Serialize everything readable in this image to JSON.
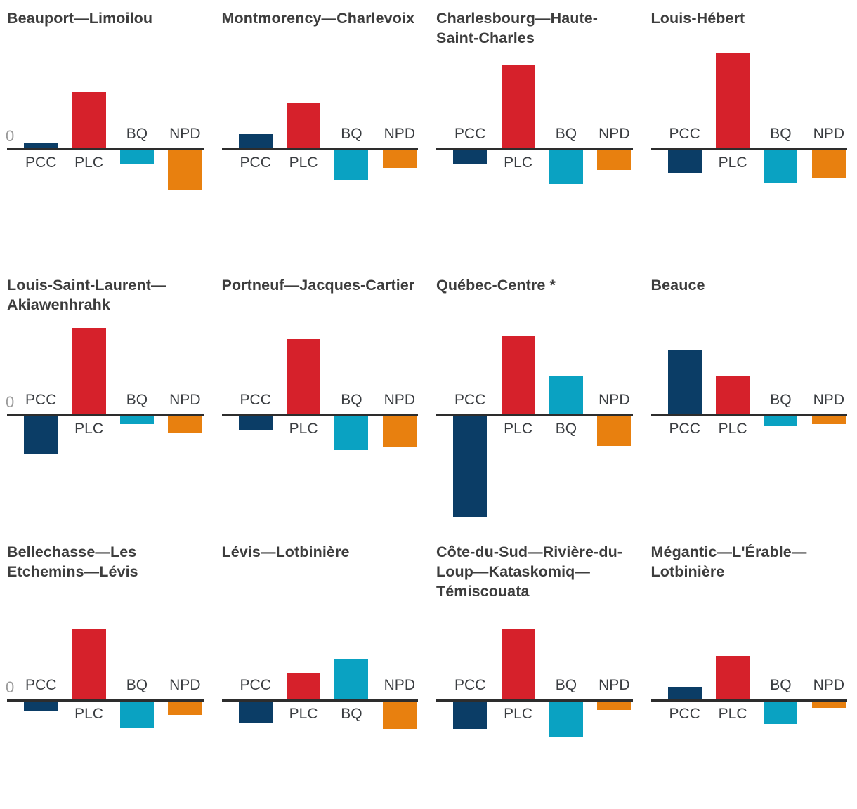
{
  "chart_data": {
    "type": "bar",
    "layout": "small-multiples 4 columns x 3 rows",
    "categories": [
      "PCC",
      "PLC",
      "BQ",
      "NPD"
    ],
    "value_unit": "px bar length from zero baseline (chart shows no numeric tick labels, only '0' at the baseline)",
    "zero_label": "0",
    "grid": false,
    "legend": "none (party label printed beside each bar, on the opposite side of the baseline from the bar)",
    "series_colors": {
      "PCC": "#0b3d66",
      "PLC": "#d6212b",
      "BQ": "#0aa2c2",
      "NPD": "#e8800f"
    },
    "charts": [
      {
        "title": "Beauport—Limoilou",
        "show_zero_label": true,
        "values": [
          8,
          80,
          -20,
          -56
        ]
      },
      {
        "title": "Montmorency—Charlevoix",
        "show_zero_label": false,
        "values": [
          20,
          64,
          -42,
          -25
        ]
      },
      {
        "title": "Charlesbourg—Haute-Saint-Charles",
        "show_zero_label": false,
        "values": [
          -19,
          118,
          -48,
          -28
        ]
      },
      {
        "title": "Louis-Hébert",
        "show_zero_label": false,
        "values": [
          -32,
          135,
          -47,
          -39
        ]
      },
      {
        "title": "Louis-Saint-Laurent—Akiawenhrahk",
        "show_zero_label": true,
        "values": [
          -53,
          123,
          -11,
          -23
        ]
      },
      {
        "title": "Portneuf—Jacques-Cartier",
        "show_zero_label": false,
        "values": [
          -19,
          107,
          -48,
          -43
        ]
      },
      {
        "title": "Québec-Centre *",
        "show_zero_label": false,
        "values": [
          -143,
          112,
          55,
          -42
        ]
      },
      {
        "title": "Beauce",
        "show_zero_label": false,
        "values": [
          91,
          54,
          -13,
          -11
        ]
      },
      {
        "title": "Bellechasse—Les Etchemins—Lévis",
        "show_zero_label": true,
        "values": [
          -14,
          100,
          -37,
          -19
        ]
      },
      {
        "title": "Lévis—Lotbinière",
        "show_zero_label": false,
        "values": [
          -31,
          38,
          58,
          -39
        ]
      },
      {
        "title": "Côte-du-Sud—Rivière-du-Loup—Kataskomiq—Témiscouata",
        "show_zero_label": false,
        "values": [
          -39,
          101,
          -50,
          -12
        ]
      },
      {
        "title": "Mégantic—L'Érable—Lotbinière",
        "show_zero_label": false,
        "values": [
          18,
          62,
          -32,
          -9
        ]
      }
    ]
  },
  "styles": {
    "background": "#ffffff",
    "title_color": "#3d3d3d",
    "category_label_color": "#3a3d41",
    "zero_label_color": "#9b9b9b",
    "baseline_color": "#2d2d2d"
  }
}
